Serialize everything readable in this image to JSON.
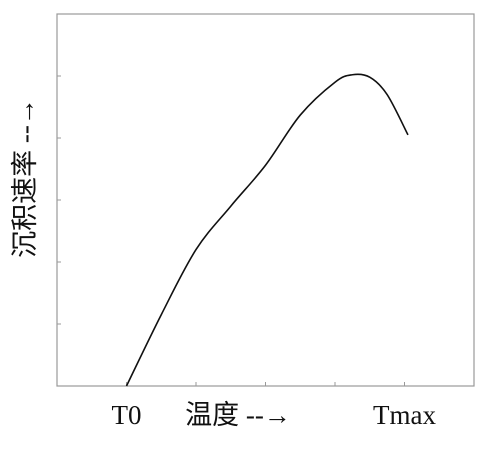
{
  "chart_data": {
    "type": "line",
    "x_label": "温度 --→",
    "y_label": "沉积速率 --→",
    "series": [
      {
        "color": "#111111",
        "x": [
          1,
          1.5,
          2,
          2.5,
          3,
          3.5,
          4,
          4.25,
          4.5,
          4.75,
          5.05
        ],
        "values": [
          0,
          1.15,
          2.2,
          2.9,
          3.56,
          4.37,
          4.9,
          5.02,
          4.98,
          4.7,
          4.05
        ]
      }
    ],
    "xlim": [
      0,
      6
    ],
    "ylim": [
      0,
      6
    ],
    "xticks": [
      {
        "value": 1,
        "label": "T0"
      },
      {
        "value": 2,
        "label": null
      },
      {
        "value": 3,
        "label": null
      },
      {
        "value": 4,
        "label": null
      },
      {
        "value": 5,
        "label": "Tmax"
      }
    ],
    "yticks": [
      {
        "value": 1,
        "label": null
      },
      {
        "value": 2,
        "label": null
      },
      {
        "value": 3,
        "label": null
      },
      {
        "value": 4,
        "label": null
      },
      {
        "value": 5,
        "label": null
      }
    ]
  }
}
